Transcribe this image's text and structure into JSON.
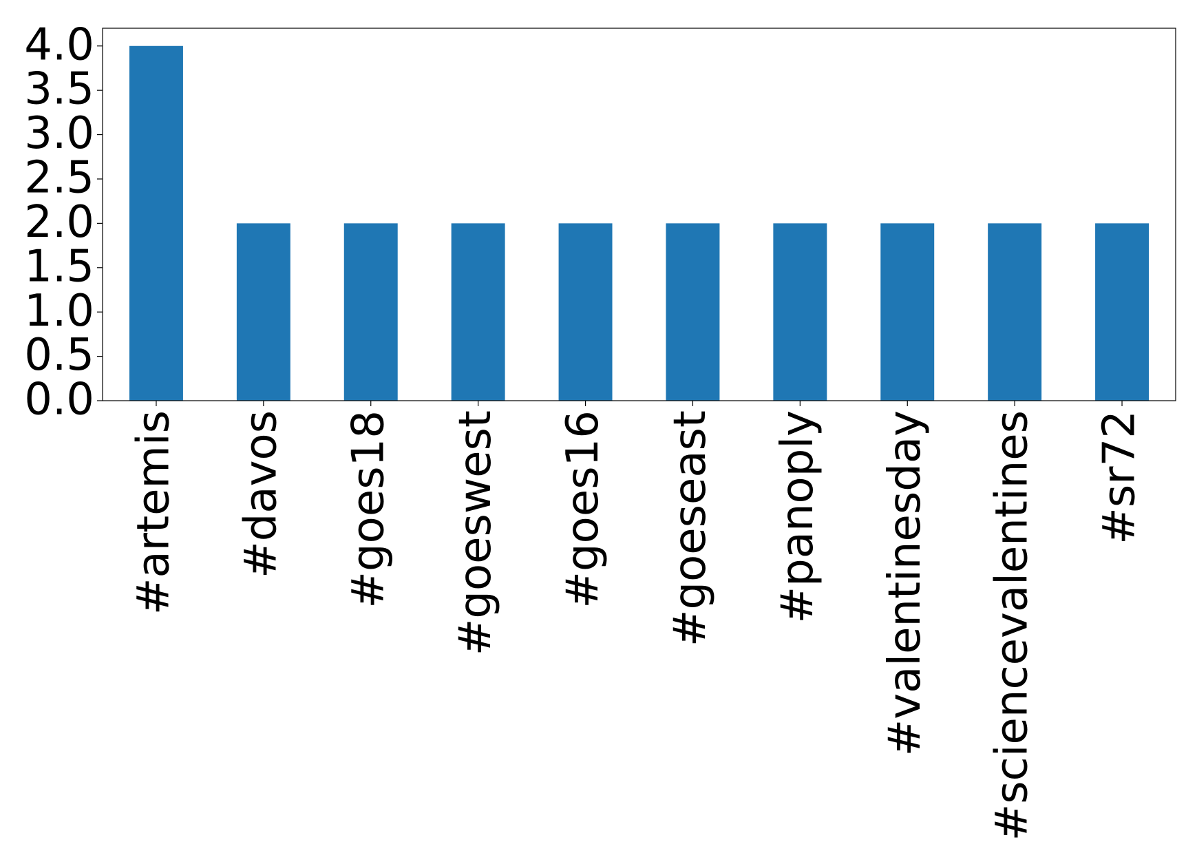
{
  "chart_data": {
    "type": "bar",
    "categories": [
      "#artemis",
      "#davos",
      "#goes18",
      "#goeswest",
      "#goes16",
      "#goeseast",
      "#panoply",
      "#valentinesday",
      "#sciencevalentines",
      "#sr72"
    ],
    "values": [
      4,
      2,
      2,
      2,
      2,
      2,
      2,
      2,
      2,
      2
    ],
    "color": "#1f77b4",
    "ylim": [
      0,
      4.2
    ],
    "yticks": [
      {
        "value": 0,
        "label": "0.0"
      },
      {
        "value": 0.5,
        "label": "0.5"
      },
      {
        "value": 1,
        "label": "1.0"
      },
      {
        "value": 1.5,
        "label": "1.5"
      },
      {
        "value": 2,
        "label": "2.0"
      },
      {
        "value": 2.5,
        "label": "2.5"
      },
      {
        "value": 3,
        "label": "3.0"
      },
      {
        "value": 3.5,
        "label": "3.5"
      },
      {
        "value": 4,
        "label": "4.0"
      }
    ],
    "grid": false
  }
}
